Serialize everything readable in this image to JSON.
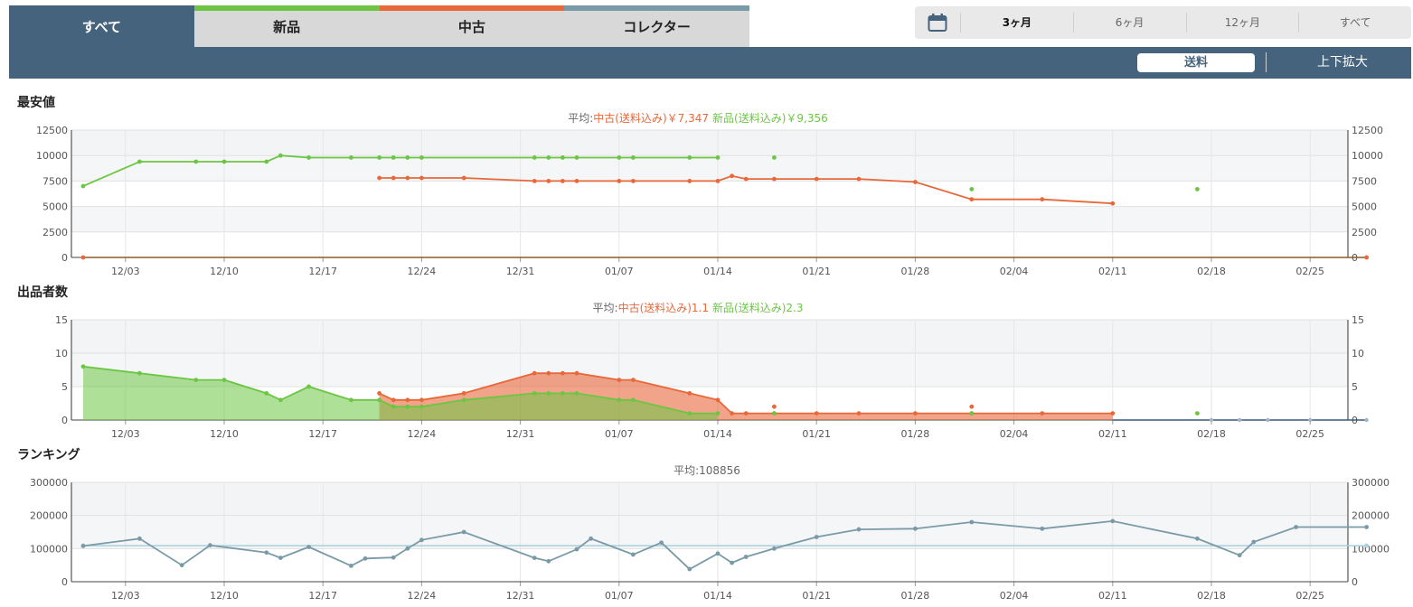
{
  "tabs": [
    {
      "label": "すべて",
      "active": true,
      "color": "#46637e"
    },
    {
      "label": "新品",
      "active": false,
      "color": "#6cc644"
    },
    {
      "label": "中古",
      "active": false,
      "color": "#e8683a"
    },
    {
      "label": "コレクター",
      "active": false,
      "color": "#7a9aa8"
    }
  ],
  "periods": {
    "icon": "calendar-icon",
    "items": [
      "3ヶ月",
      "6ヶ月",
      "12ヶ月",
      "すべて"
    ],
    "selected": "3ヶ月"
  },
  "toolbar": {
    "shipping_label": "送料",
    "zoom_label": "上下拡大"
  },
  "colors": {
    "new": "#6cc644",
    "used": "#e8683a",
    "rank": "#7a9aa8",
    "rank_avg": "#a9d0dc",
    "header": "#46637e"
  },
  "sections": {
    "price_title": "最安値",
    "sellers_title": "出品者数",
    "ranking_title": "ランキング"
  },
  "averages": {
    "price": {
      "prefix": "平均:",
      "used": "中古(送料込み)￥7,347",
      "new": "新品(送料込み)￥9,356"
    },
    "sellers": {
      "prefix": "平均:",
      "used": "中古(送料込み)1.1",
      "new": "新品(送料込み)2.3"
    },
    "ranking": "平均:108856"
  },
  "chart_data": [
    {
      "type": "line",
      "title": "最安値",
      "x_ticks": [
        "12/03",
        "12/10",
        "12/17",
        "12/24",
        "12/31",
        "01/07",
        "01/14",
        "01/21",
        "01/28",
        "02/04",
        "02/11",
        "02/18",
        "02/25"
      ],
      "ylim": [
        0,
        12500
      ],
      "y_ticks": [
        0,
        2500,
        5000,
        7500,
        10000,
        12500
      ],
      "grid": true,
      "series": [
        {
          "name": "新品(送料込み)",
          "segments": [
            [
              [
                "11-30",
                7000
              ],
              [
                "12-04",
                9400
              ],
              [
                "12-08",
                9400
              ],
              [
                "12-10",
                9400
              ],
              [
                "12-13",
                9400
              ],
              [
                "12-14",
                10000
              ],
              [
                "12-16",
                9800
              ],
              [
                "12-19",
                9800
              ],
              [
                "12-21",
                9800
              ],
              [
                "12-22",
                9800
              ],
              [
                "12-23",
                9800
              ],
              [
                "12-24",
                9800
              ],
              [
                "01-01",
                9800
              ],
              [
                "01-02",
                9800
              ],
              [
                "01-03",
                9800
              ],
              [
                "01-04",
                9800
              ],
              [
                "01-07",
                9800
              ],
              [
                "01-08",
                9800
              ],
              [
                "01-12",
                9800
              ],
              [
                "01-14",
                9800
              ]
            ],
            [
              [
                "01-18",
                9800
              ]
            ],
            [
              [
                "02-01",
                6700
              ]
            ],
            [
              [
                "02-17",
                6700
              ]
            ]
          ]
        },
        {
          "name": "中古(送料込み)",
          "segments": [
            [
              [
                "12-21",
                7800
              ],
              [
                "12-22",
                7800
              ],
              [
                "12-23",
                7800
              ],
              [
                "12-24",
                7800
              ],
              [
                "12-27",
                7800
              ],
              [
                "01-01",
                7500
              ],
              [
                "01-02",
                7500
              ],
              [
                "01-03",
                7500
              ],
              [
                "01-04",
                7500
              ],
              [
                "01-07",
                7500
              ],
              [
                "01-08",
                7500
              ],
              [
                "01-12",
                7500
              ],
              [
                "01-14",
                7500
              ],
              [
                "01-15",
                8000
              ],
              [
                "01-16",
                7700
              ],
              [
                "01-18",
                7700
              ],
              [
                "01-21",
                7700
              ],
              [
                "01-24",
                7700
              ],
              [
                "01-28",
                7400
              ],
              [
                "02-01",
                5700
              ],
              [
                "02-06",
                5700
              ],
              [
                "02-11",
                5300
              ]
            ]
          ]
        }
      ]
    },
    {
      "type": "area",
      "title": "出品者数",
      "x_ticks": [
        "12/03",
        "12/10",
        "12/17",
        "12/24",
        "12/31",
        "01/07",
        "01/14",
        "01/21",
        "01/28",
        "02/04",
        "02/11",
        "02/18",
        "02/25"
      ],
      "ylim": [
        0,
        15
      ],
      "y_ticks": [
        0,
        5,
        10,
        15
      ],
      "grid": true,
      "series": [
        {
          "name": "新品(送料込み)",
          "values": [
            [
              "11-30",
              8
            ],
            [
              "12-04",
              7
            ],
            [
              "12-08",
              6
            ],
            [
              "12-10",
              6
            ],
            [
              "12-13",
              4
            ],
            [
              "12-14",
              3
            ],
            [
              "12-16",
              5
            ],
            [
              "12-19",
              3
            ],
            [
              "12-21",
              3
            ],
            [
              "12-22",
              2
            ],
            [
              "12-23",
              2
            ],
            [
              "12-24",
              2
            ],
            [
              "12-27",
              3
            ],
            [
              "01-01",
              4
            ],
            [
              "01-02",
              4
            ],
            [
              "01-03",
              4
            ],
            [
              "01-04",
              4
            ],
            [
              "01-07",
              3
            ],
            [
              "01-08",
              3
            ],
            [
              "01-12",
              1
            ],
            [
              "01-14",
              1
            ]
          ],
          "isolated": [
            [
              "01-18",
              1
            ],
            [
              "02-01",
              1
            ],
            [
              "02-17",
              1
            ]
          ]
        },
        {
          "name": "中古(送料込み)",
          "values": [
            [
              "12-21",
              4
            ],
            [
              "12-22",
              3
            ],
            [
              "12-23",
              3
            ],
            [
              "12-24",
              3
            ],
            [
              "12-27",
              4
            ],
            [
              "01-01",
              7
            ],
            [
              "01-02",
              7
            ],
            [
              "01-03",
              7
            ],
            [
              "01-04",
              7
            ],
            [
              "01-07",
              6
            ],
            [
              "01-08",
              6
            ],
            [
              "01-12",
              4
            ],
            [
              "01-14",
              3
            ],
            [
              "01-15",
              1
            ],
            [
              "01-16",
              1
            ],
            [
              "01-18",
              1
            ],
            [
              "01-21",
              1
            ],
            [
              "01-24",
              1
            ],
            [
              "01-28",
              1
            ],
            [
              "02-01",
              1
            ],
            [
              "02-06",
              1
            ],
            [
              "02-11",
              1
            ]
          ],
          "isolated": [
            [
              "01-18",
              2
            ],
            [
              "02-01",
              2
            ]
          ]
        },
        {
          "name": "コレクター",
          "values": [
            [
              "02-11",
              0
            ],
            [
              "02-18",
              0
            ],
            [
              "02-20",
              0
            ],
            [
              "02-22",
              0
            ],
            [
              "02-25",
              0
            ],
            [
              "03-01",
              0
            ]
          ]
        }
      ]
    },
    {
      "type": "line",
      "title": "ランキング",
      "x_ticks": [
        "12/03",
        "12/10",
        "12/17",
        "12/24",
        "12/31",
        "01/07",
        "01/14",
        "01/21",
        "01/28",
        "02/04",
        "02/11",
        "02/18",
        "02/25"
      ],
      "ylim": [
        0,
        300000
      ],
      "y_ticks": [
        0,
        100000,
        200000,
        300000
      ],
      "grid": true,
      "average": 108856,
      "series": [
        {
          "name": "ランキング",
          "values": [
            [
              "11-30",
              108000
            ],
            [
              "12-04",
              130000
            ],
            [
              "12-07",
              50000
            ],
            [
              "12-09",
              110000
            ],
            [
              "12-13",
              88000
            ],
            [
              "12-14",
              72000
            ],
            [
              "12-16",
              105000
            ],
            [
              "12-19",
              48000
            ],
            [
              "12-20",
              70000
            ],
            [
              "12-22",
              73000
            ],
            [
              "12-23",
              100000
            ],
            [
              "12-24",
              126000
            ],
            [
              "12-27",
              150000
            ],
            [
              "01-01",
              72000
            ],
            [
              "01-02",
              62000
            ],
            [
              "01-04",
              98000
            ],
            [
              "01-05",
              130000
            ],
            [
              "01-08",
              82000
            ],
            [
              "01-10",
              118000
            ],
            [
              "01-12",
              38000
            ],
            [
              "01-14",
              85000
            ],
            [
              "01-15",
              57000
            ],
            [
              "01-16",
              75000
            ],
            [
              "01-18",
              100000
            ],
            [
              "01-21",
              135000
            ],
            [
              "01-24",
              158000
            ],
            [
              "01-28",
              160000
            ],
            [
              "02-01",
              180000
            ],
            [
              "02-06",
              160000
            ],
            [
              "02-11",
              183000
            ],
            [
              "02-17",
              130000
            ],
            [
              "02-20",
              80000
            ],
            [
              "02-21",
              120000
            ],
            [
              "02-24",
              165000
            ],
            [
              "03-01",
              165000
            ]
          ]
        }
      ]
    }
  ]
}
